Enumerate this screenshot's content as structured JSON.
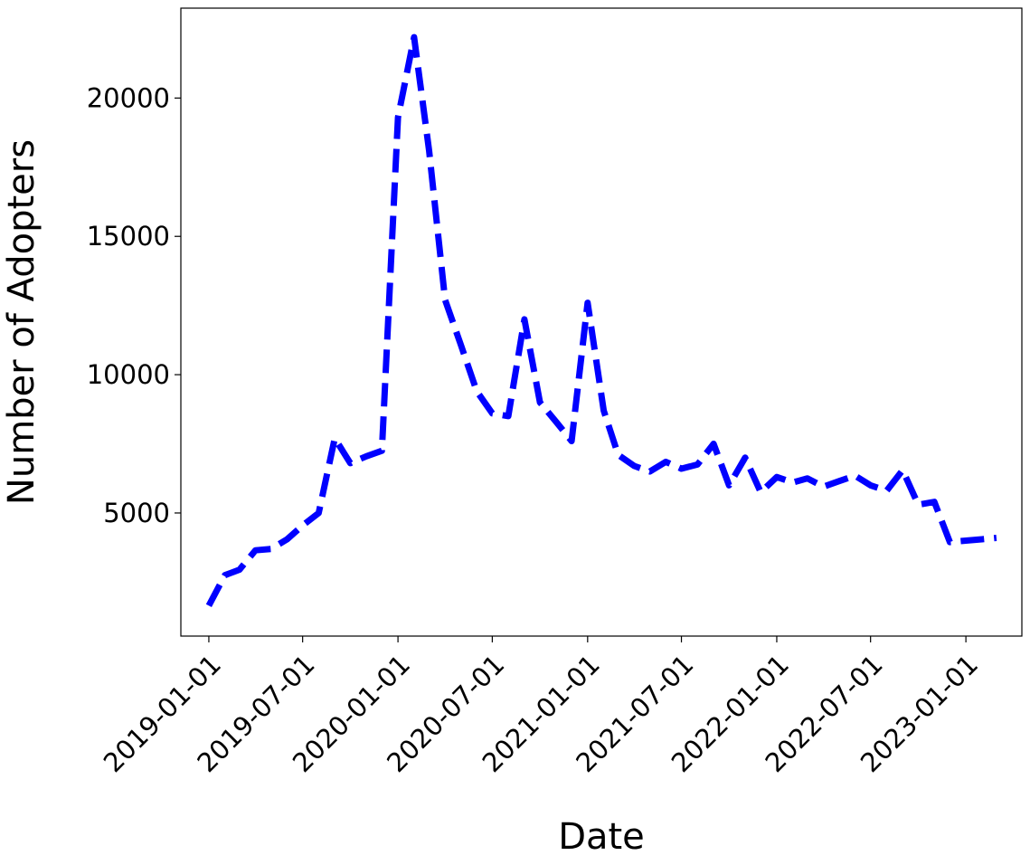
{
  "chart_data": {
    "type": "line",
    "title": "",
    "xlabel": "Date",
    "ylabel": "Number of Adopters",
    "x_tick_labels": [
      "2019-01-01",
      "2019-07-01",
      "2020-01-01",
      "2020-07-01",
      "2021-01-01",
      "2021-07-01",
      "2022-01-01",
      "2022-07-01",
      "2023-01-01"
    ],
    "y_tick_labels": [
      "5000",
      "10000",
      "15000",
      "20000"
    ],
    "y_ticks": [
      5000,
      10000,
      15000,
      20000
    ],
    "xlim": [
      "2018-11-08",
      "2023-04-19"
    ],
    "ylim": [
      550,
      23250
    ],
    "grid": false,
    "line_style": "dashed",
    "series": [
      {
        "color": "#0000ff",
        "x": [
          "2019-01-01",
          "2019-02-01",
          "2019-03-01",
          "2019-04-01",
          "2019-05-01",
          "2019-06-01",
          "2019-07-01",
          "2019-08-01",
          "2019-09-01",
          "2019-10-01",
          "2019-11-01",
          "2019-12-01",
          "2020-01-01",
          "2020-02-01",
          "2020-03-01",
          "2020-04-01",
          "2020-05-01",
          "2020-06-01",
          "2020-07-01",
          "2020-08-01",
          "2020-09-01",
          "2020-10-01",
          "2020-11-01",
          "2020-12-01",
          "2021-01-01",
          "2021-02-01",
          "2021-03-01",
          "2021-04-01",
          "2021-05-01",
          "2021-06-01",
          "2021-07-01",
          "2021-08-01",
          "2021-09-01",
          "2021-10-01",
          "2021-11-01",
          "2021-12-01",
          "2022-01-01",
          "2022-02-01",
          "2022-03-01",
          "2022-04-01",
          "2022-05-01",
          "2022-06-01",
          "2022-07-01",
          "2022-08-01",
          "2022-09-01",
          "2022-10-01",
          "2022-11-01",
          "2022-12-01",
          "2023-01-01",
          "2023-02-01",
          "2023-03-01"
        ],
        "y": [
          1650,
          2750,
          2950,
          3650,
          3700,
          4050,
          4550,
          5000,
          7700,
          6800,
          7050,
          7250,
          19300,
          22200,
          18100,
          12700,
          11100,
          9400,
          8600,
          8500,
          12000,
          9000,
          8300,
          7600,
          12600,
          8700,
          7100,
          6700,
          6500,
          6850,
          6600,
          6750,
          7500,
          6000,
          7000,
          5750,
          6300,
          6100,
          6250,
          5950,
          6150,
          6350,
          6000,
          5800,
          6550,
          5300,
          5400,
          3950,
          4000,
          4050,
          4100
        ]
      }
    ]
  }
}
